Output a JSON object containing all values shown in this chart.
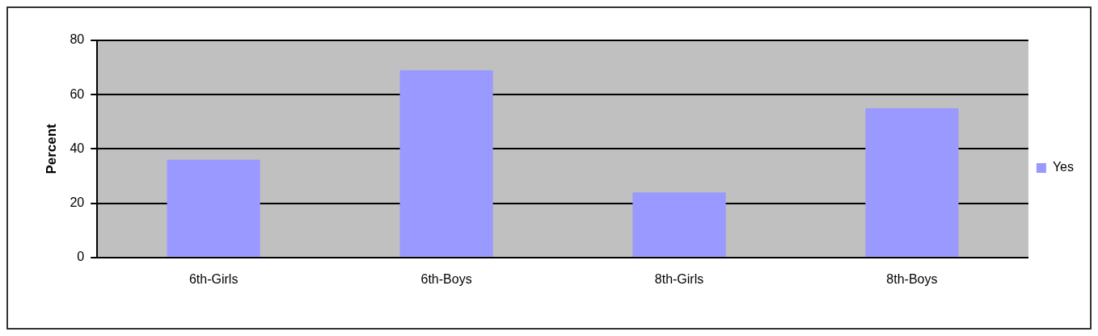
{
  "chart_data": {
    "type": "bar",
    "ylabel": "Percent",
    "categories": [
      "6th-Girls",
      "6th-Boys",
      "8th-Girls",
      "8th-Boys"
    ],
    "series": [
      {
        "name": "Yes",
        "color": "#9999ff",
        "values": [
          36,
          69,
          24,
          55
        ]
      }
    ],
    "ylim": [
      0,
      80
    ],
    "yticks": [
      0,
      20,
      40,
      60,
      80
    ],
    "grid": "y",
    "legend": "right"
  }
}
